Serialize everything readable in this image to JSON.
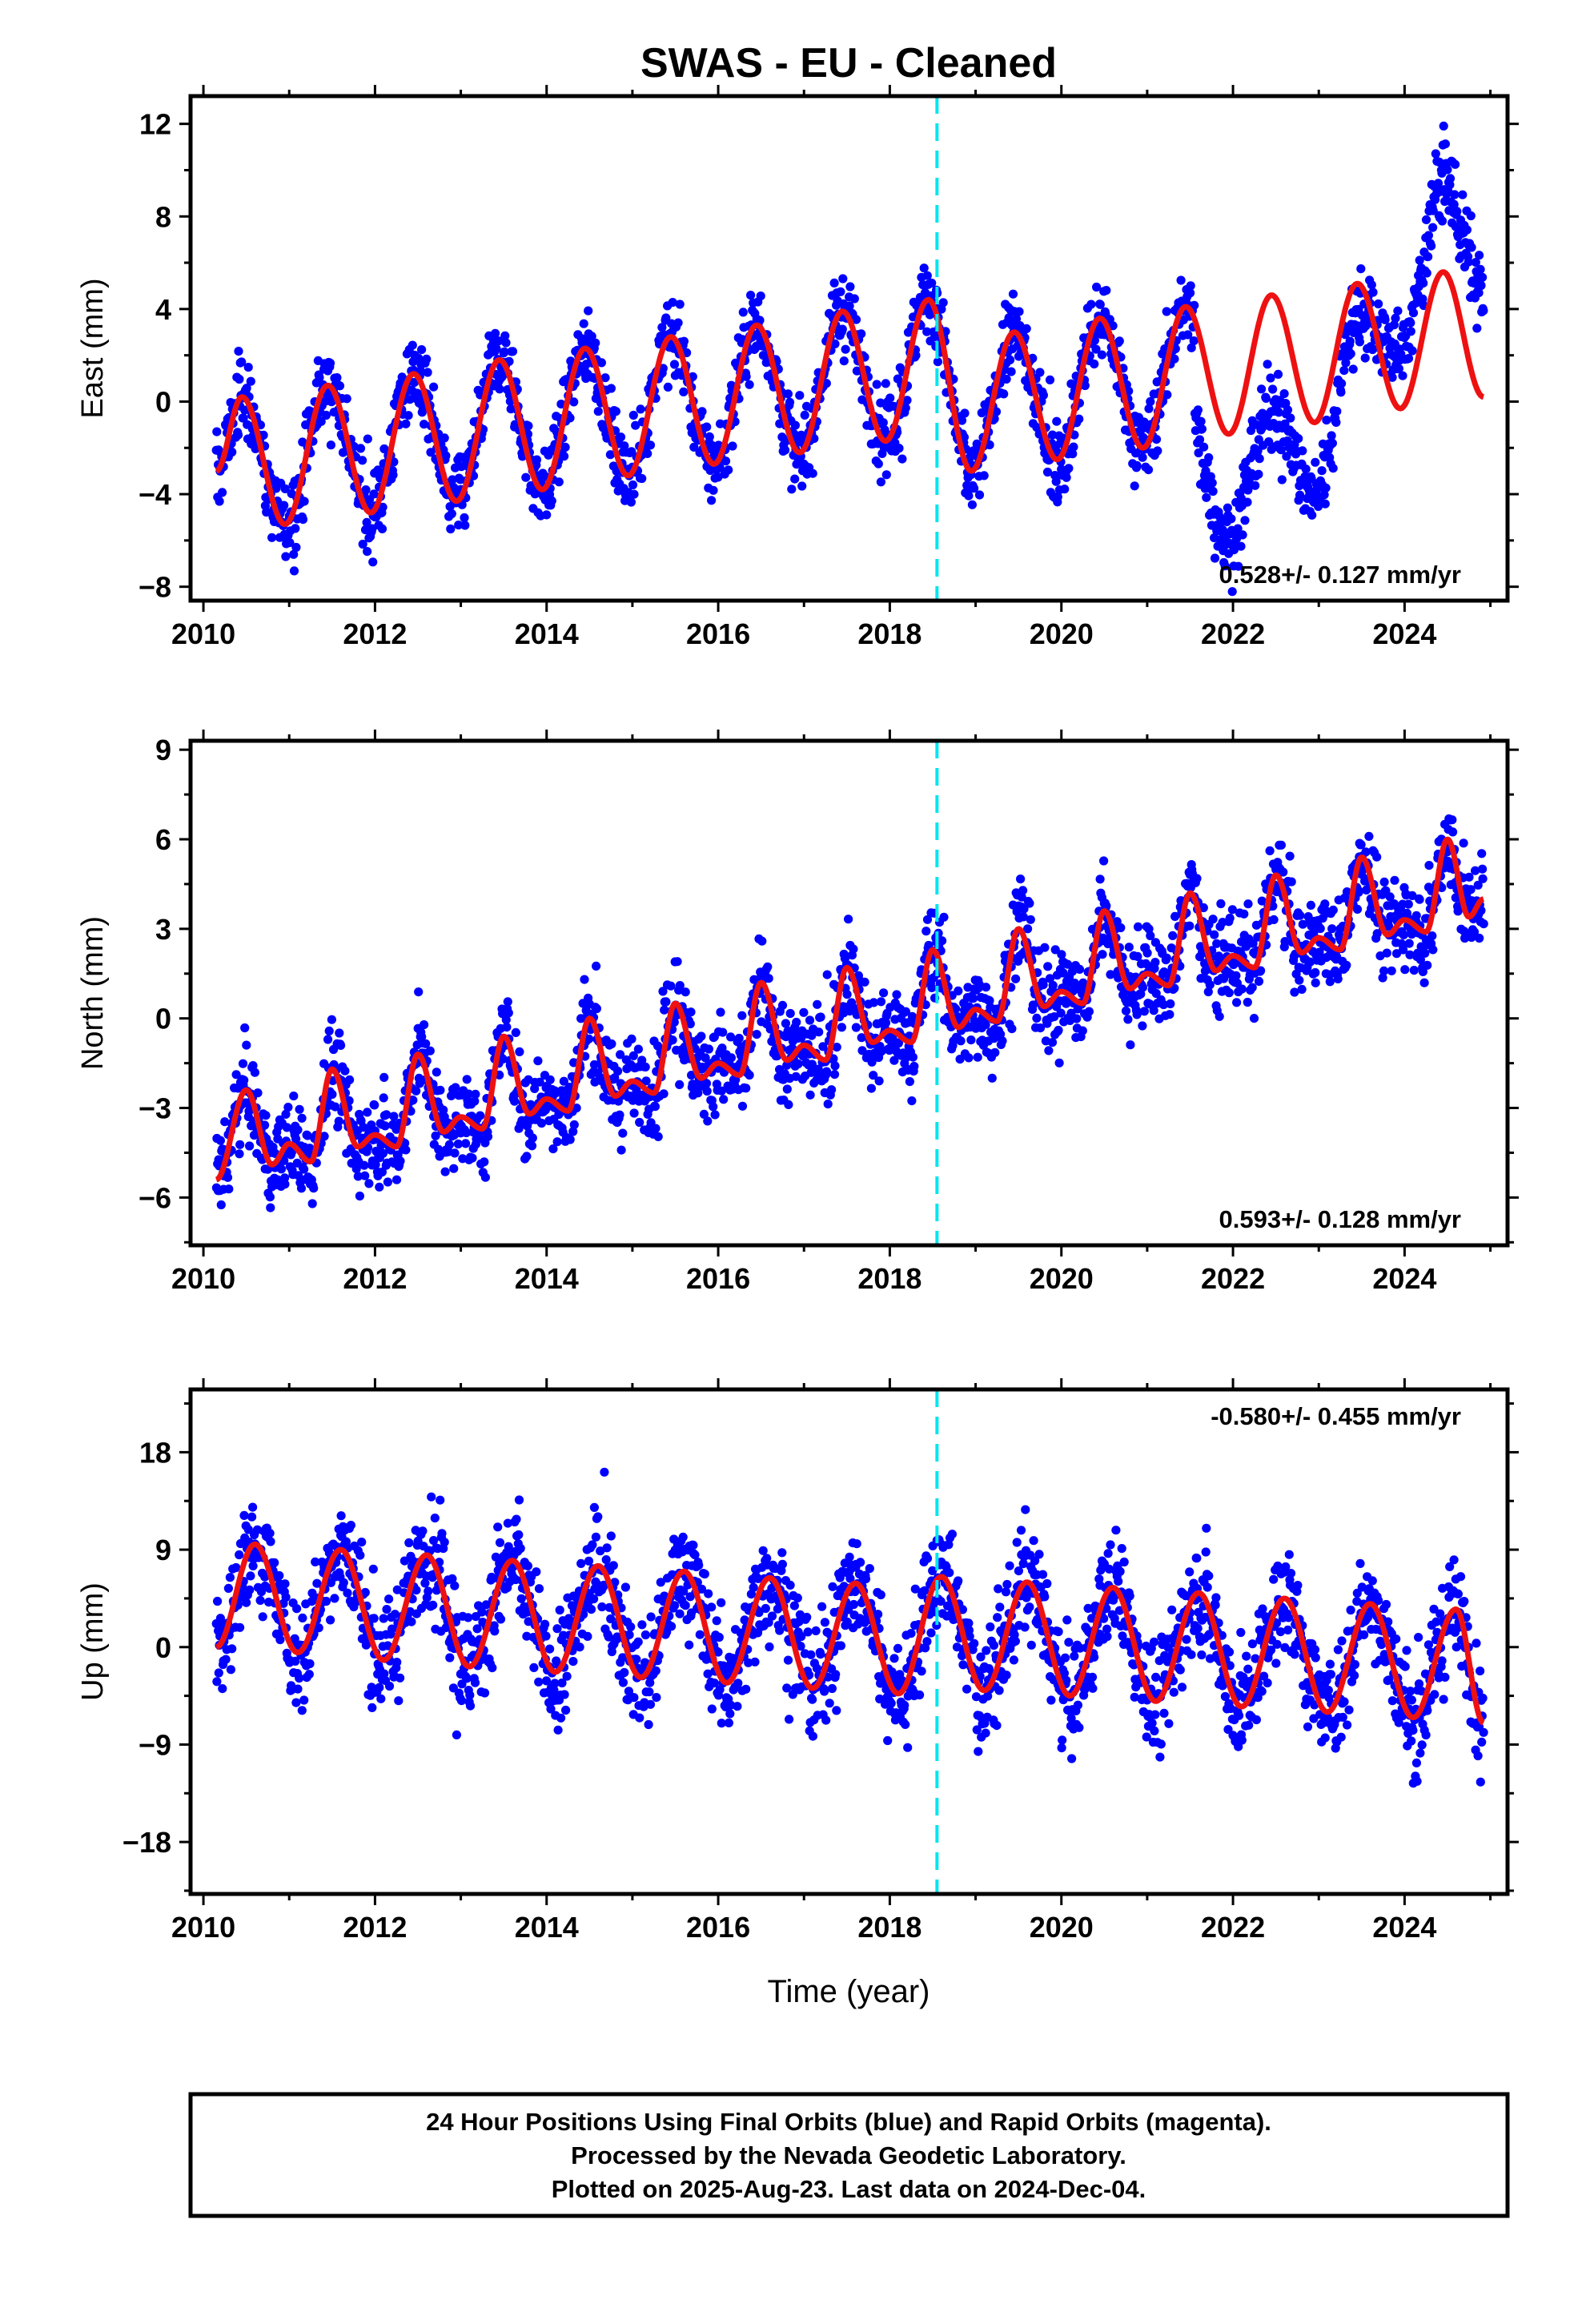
{
  "title": "SWAS  - EU - Cleaned",
  "xlabel": "Time (year)",
  "footer": {
    "line1": "24 Hour Positions Using Final Orbits (blue) and Rapid Orbits (magenta).",
    "line2": "Processed by the Nevada Geodetic Laboratory.",
    "line3": "Plotted on 2025-Aug-23. Last data on 2024-Dec-04."
  },
  "colors": {
    "data": "#0000ff",
    "model": "#ee1111",
    "break": "#00e5ee",
    "frame": "#000000"
  },
  "chart_data": [
    {
      "type": "scatter",
      "ylabel": "East (mm)",
      "xlim": [
        2009.85,
        2025.2
      ],
      "ylim": [
        -8.6,
        13.2
      ],
      "xticks": [
        2010,
        2012,
        2014,
        2016,
        2018,
        2020,
        2022,
        2024
      ],
      "yticks": [
        -8,
        -4,
        0,
        4,
        8,
        12
      ],
      "rate_label": "0.528+/- 0.127 mm/yr",
      "rate_position": "bottom-right",
      "break_line_x": 2018.55,
      "series": [
        {
          "role": "observations",
          "x_start": 2010.15,
          "x_end": 2024.92,
          "model_samples": [
            [
              2010.15,
              -3.0
            ],
            [
              2010.45,
              0.2
            ],
            [
              2010.95,
              -5.3
            ],
            [
              2011.45,
              0.7
            ],
            [
              2011.95,
              -4.8
            ],
            [
              2012.45,
              1.2
            ],
            [
              2012.95,
              -4.3
            ],
            [
              2013.45,
              1.8
            ],
            [
              2013.95,
              -3.8
            ],
            [
              2014.45,
              2.3
            ],
            [
              2014.95,
              -3.2
            ],
            [
              2015.45,
              2.8
            ],
            [
              2015.95,
              -2.7
            ],
            [
              2016.45,
              3.3
            ],
            [
              2016.95,
              -2.2
            ],
            [
              2017.45,
              3.9
            ],
            [
              2017.95,
              -1.7
            ],
            [
              2018.45,
              4.4
            ],
            [
              2018.95,
              -3.0
            ],
            [
              2019.45,
              3.0
            ],
            [
              2019.95,
              -2.5
            ],
            [
              2020.45,
              3.6
            ],
            [
              2020.95,
              -2.0
            ],
            [
              2021.45,
              4.1
            ],
            [
              2021.95,
              -1.4
            ],
            [
              2022.45,
              4.6
            ],
            [
              2022.95,
              -0.9
            ],
            [
              2023.45,
              5.1
            ],
            [
              2023.95,
              -0.3
            ],
            [
              2024.45,
              5.6
            ],
            [
              2024.92,
              0.2
            ]
          ],
          "observed_offsets": [
            [
              2021.7,
              -4.5
            ],
            [
              2022.4,
              -5.0
            ],
            [
              2023.0,
              -3.0
            ],
            [
              2023.4,
              -1.5
            ],
            [
              2024.0,
              2.5
            ],
            [
              2024.5,
              4.0
            ],
            [
              2024.9,
              4.5
            ]
          ],
          "noise_mm": 1.2
        },
        {
          "role": "model",
          "note": "annual + semiannual + trend fit"
        }
      ]
    },
    {
      "type": "scatter",
      "ylabel": "North (mm)",
      "xlim": [
        2009.85,
        2025.2
      ],
      "ylim": [
        -7.6,
        9.3
      ],
      "xticks": [
        2010,
        2012,
        2014,
        2016,
        2018,
        2020,
        2022,
        2024
      ],
      "yticks": [
        -6,
        -3,
        0,
        3,
        6,
        9
      ],
      "rate_label": "0.593+/- 0.128 mm/yr",
      "rate_position": "bottom-right",
      "break_line_x": 2018.55,
      "series": [
        {
          "role": "observations",
          "x_start": 2010.15,
          "x_end": 2024.92,
          "model_samples": [
            [
              2010.15,
              -5.4
            ],
            [
              2010.5,
              -2.4
            ],
            [
              2010.8,
              -4.9
            ],
            [
              2011.0,
              -4.2
            ],
            [
              2011.25,
              -4.8
            ],
            [
              2011.5,
              -1.7
            ],
            [
              2011.8,
              -4.3
            ],
            [
              2012.0,
              -3.9
            ],
            [
              2012.25,
              -4.3
            ],
            [
              2012.5,
              -1.2
            ],
            [
              2012.8,
              -3.8
            ],
            [
              2013.0,
              -3.3
            ],
            [
              2013.25,
              -3.7
            ],
            [
              2013.5,
              -0.6
            ],
            [
              2013.8,
              -3.2
            ],
            [
              2014.0,
              -2.7
            ],
            [
              2014.25,
              -3.1
            ],
            [
              2014.5,
              0.0
            ],
            [
              2014.8,
              -2.6
            ],
            [
              2015.0,
              -2.1
            ],
            [
              2015.25,
              -2.5
            ],
            [
              2015.5,
              0.5
            ],
            [
              2015.8,
              -2.0
            ],
            [
              2016.0,
              -1.5
            ],
            [
              2016.25,
              -1.9
            ],
            [
              2016.5,
              1.2
            ],
            [
              2016.8,
              -1.4
            ],
            [
              2017.0,
              -0.9
            ],
            [
              2017.25,
              -1.4
            ],
            [
              2017.5,
              1.7
            ],
            [
              2017.8,
              -0.8
            ],
            [
              2018.0,
              -0.4
            ],
            [
              2018.25,
              -0.8
            ],
            [
              2018.5,
              2.3
            ],
            [
              2018.8,
              -0.3
            ],
            [
              2019.0,
              0.3
            ],
            [
              2019.25,
              -0.1
            ],
            [
              2019.5,
              3.0
            ],
            [
              2019.8,
              0.4
            ],
            [
              2020.0,
              0.9
            ],
            [
              2020.25,
              0.5
            ],
            [
              2020.5,
              3.6
            ],
            [
              2020.8,
              1.0
            ],
            [
              2021.0,
              1.5
            ],
            [
              2021.25,
              1.1
            ],
            [
              2021.5,
              4.2
            ],
            [
              2021.8,
              1.6
            ],
            [
              2022.0,
              2.1
            ],
            [
              2022.25,
              1.7
            ],
            [
              2022.5,
              4.8
            ],
            [
              2022.8,
              2.2
            ],
            [
              2023.0,
              2.7
            ],
            [
              2023.25,
              2.3
            ],
            [
              2023.5,
              5.4
            ],
            [
              2023.8,
              2.8
            ],
            [
              2024.0,
              3.3
            ],
            [
              2024.25,
              2.9
            ],
            [
              2024.5,
              6.0
            ],
            [
              2024.75,
              3.4
            ],
            [
              2024.92,
              4.0
            ]
          ],
          "noise_mm": 1.1
        },
        {
          "role": "model",
          "note": "annual + semiannual + trend fit"
        }
      ]
    },
    {
      "type": "scatter",
      "ylabel": "Up (mm)",
      "xlim": [
        2009.85,
        2025.2
      ],
      "ylim": [
        -22.8,
        23.8
      ],
      "xticks": [
        2010,
        2012,
        2014,
        2016,
        2018,
        2020,
        2022,
        2024
      ],
      "yticks": [
        -18,
        -9,
        0,
        9,
        18
      ],
      "rate_label": "-0.580+/- 0.455 mm/yr",
      "rate_position": "top-right",
      "break_line_x": 2018.55,
      "series": [
        {
          "role": "observations",
          "x_start": 2010.15,
          "x_end": 2024.92,
          "model_samples": [
            [
              2010.15,
              0.0
            ],
            [
              2010.6,
              9.5
            ],
            [
              2011.1,
              -0.5
            ],
            [
              2011.6,
              9.0
            ],
            [
              2012.1,
              -1.2
            ],
            [
              2012.6,
              8.5
            ],
            [
              2013.1,
              -1.8
            ],
            [
              2013.6,
              8.0
            ],
            [
              2014.1,
              -2.3
            ],
            [
              2014.6,
              7.5
            ],
            [
              2015.1,
              -2.8
            ],
            [
              2015.6,
              7.0
            ],
            [
              2016.1,
              -3.3
            ],
            [
              2016.6,
              6.4
            ],
            [
              2017.1,
              -3.8
            ],
            [
              2017.6,
              5.9
            ],
            [
              2018.1,
              -4.3
            ],
            [
              2018.6,
              6.5
            ],
            [
              2019.1,
              -4.0
            ],
            [
              2019.6,
              6.0
            ],
            [
              2020.1,
              -4.5
            ],
            [
              2020.6,
              5.5
            ],
            [
              2021.1,
              -5.0
            ],
            [
              2021.6,
              5.0
            ],
            [
              2022.1,
              -5.5
            ],
            [
              2022.6,
              4.5
            ],
            [
              2023.1,
              -6.0
            ],
            [
              2023.6,
              4.0
            ],
            [
              2024.1,
              -6.5
            ],
            [
              2024.6,
              3.5
            ],
            [
              2024.92,
              -7.0
            ]
          ],
          "noise_mm": 3.6
        },
        {
          "role": "model",
          "note": "annual + semiannual + trend fit"
        }
      ]
    }
  ]
}
